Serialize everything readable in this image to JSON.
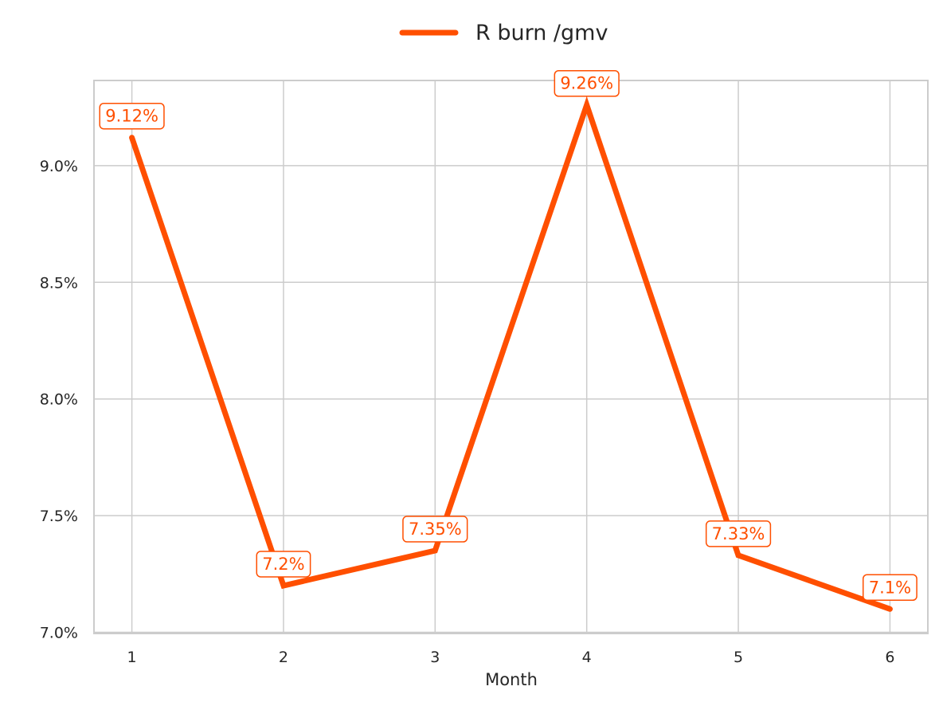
{
  "chart_data": {
    "type": "line",
    "title": "",
    "xlabel": "Month",
    "ylabel": "",
    "x": [
      1,
      2,
      3,
      4,
      5,
      6
    ],
    "x_tick_labels": [
      "1",
      "2",
      "3",
      "4",
      "5",
      "6"
    ],
    "y_tick_values": [
      7.0,
      7.5,
      8.0,
      8.5,
      9.0
    ],
    "y_tick_labels": [
      "7.0%",
      "7.5%",
      "8.0%",
      "8.5%",
      "9.0%"
    ],
    "xlim": [
      0.75,
      6.25
    ],
    "ylim": [
      6.995,
      9.365
    ],
    "grid": true,
    "legend_position": "top-center",
    "series": [
      {
        "name": "R burn /gmv",
        "color": "#ff4f00",
        "values": [
          9.12,
          7.2,
          7.35,
          9.26,
          7.33,
          7.1
        ],
        "data_labels": [
          "9.12%",
          "7.2%",
          "7.35%",
          "9.26%",
          "7.33%",
          "7.1%"
        ]
      }
    ]
  }
}
